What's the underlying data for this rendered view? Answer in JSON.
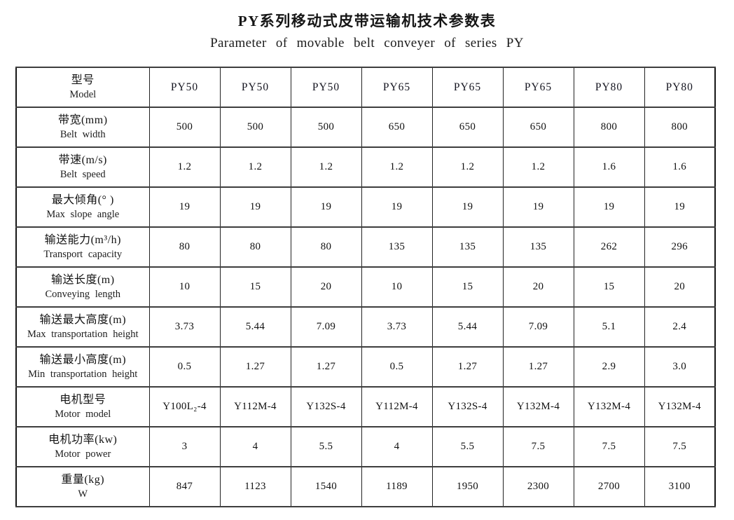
{
  "page": {
    "title_zh": "PY系列移动式皮带运输机技术参数表",
    "title_en": "Parameter of movable belt conveyer of series PY"
  },
  "table": {
    "header": {
      "label_zh": "型号",
      "label_en": "Model",
      "models": [
        "PY50",
        "PY50",
        "PY50",
        "PY65",
        "PY65",
        "PY65",
        "PY80",
        "PY80"
      ]
    },
    "rows": [
      {
        "label_zh": "带宽(mm)",
        "label_en": "Belt width",
        "values": [
          "500",
          "500",
          "500",
          "650",
          "650",
          "650",
          "800",
          "800"
        ]
      },
      {
        "label_zh": "带速(m/s)",
        "label_en": "Belt speed",
        "values": [
          "1.2",
          "1.2",
          "1.2",
          "1.2",
          "1.2",
          "1.2",
          "1.6",
          "1.6"
        ]
      },
      {
        "label_zh": "最大倾角(° )",
        "label_en": "Max slope angle",
        "values": [
          "19",
          "19",
          "19",
          "19",
          "19",
          "19",
          "19",
          "19"
        ]
      },
      {
        "label_zh": "输送能力(m³/h)",
        "label_en": "Transport capacity",
        "values": [
          "80",
          "80",
          "80",
          "135",
          "135",
          "135",
          "262",
          "296"
        ]
      },
      {
        "label_zh": "输送长度(m)",
        "label_en": "Conveying length",
        "values": [
          "10",
          "15",
          "20",
          "10",
          "15",
          "20",
          "15",
          "20"
        ]
      },
      {
        "label_zh": "输送最大高度(m)",
        "label_en": "Max transportation height",
        "values": [
          "3.73",
          "5.44",
          "7.09",
          "3.73",
          "5.44",
          "7.09",
          "5.1",
          "2.4"
        ]
      },
      {
        "label_zh": "输送最小高度(m)",
        "label_en": "Min transportation height",
        "values": [
          "0.5",
          "1.27",
          "1.27",
          "0.5",
          "1.27",
          "1.27",
          "2.9",
          "3.0"
        ]
      },
      {
        "label_zh": "电机型号",
        "label_en": "Motor model",
        "values": [
          "Y100L₂-4",
          "Y112M-4",
          "Y132S-4",
          "Y112M-4",
          "Y132S-4",
          "Y132M-4",
          "Y132M-4",
          "Y132M-4"
        ]
      },
      {
        "label_zh": "电机功率(kw)",
        "label_en": "Motor power",
        "values": [
          "3",
          "4",
          "5.5",
          "4",
          "5.5",
          "7.5",
          "7.5",
          "7.5"
        ]
      },
      {
        "label_zh": "重量(kg)",
        "label_en": "W",
        "values": [
          "847",
          "1123",
          "1540",
          "1189",
          "1950",
          "2300",
          "2700",
          "3100"
        ]
      }
    ]
  }
}
